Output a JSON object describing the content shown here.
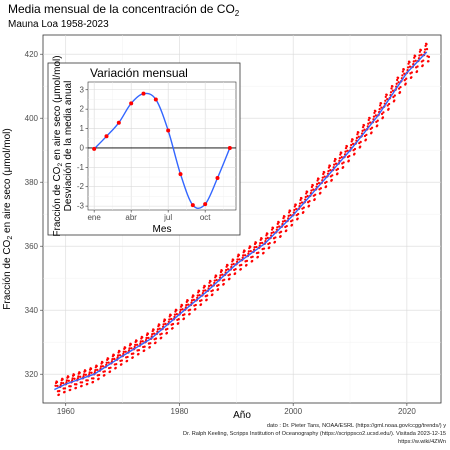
{
  "chart_data": [
    {
      "type": "line",
      "title": "Media mensual de la concentración de CO",
      "title_subscript": "2",
      "subtitle": "Mauna Loa 1958-2023",
      "xlabel": "Año",
      "ylabel_parts": [
        "Fracción de CO",
        "2",
        " en aire seco (μmol/mol)"
      ],
      "xlim": [
        1956,
        2026
      ],
      "ylim": [
        311,
        426
      ],
      "x_ticks": [
        1960,
        1980,
        2000,
        2020
      ],
      "x_tick_labels": [
        "1960",
        "1980",
        "2000",
        "2020"
      ],
      "y_ticks": [
        320,
        340,
        360,
        380,
        400,
        420
      ],
      "y_tick_labels": [
        "320",
        "340",
        "360",
        "380",
        "400",
        "420"
      ],
      "grid": true,
      "legend": "none",
      "trend": {
        "x": [
          1958,
          1960,
          1965,
          1970,
          1975,
          1980,
          1985,
          1990,
          1995,
          2000,
          2005,
          2010,
          2015,
          2020,
          2023.5
        ],
        "y": [
          315.2,
          316.9,
          320.0,
          325.7,
          331.1,
          338.7,
          346.1,
          354.4,
          360.8,
          369.7,
          379.8,
          389.9,
          401.0,
          414.2,
          420.7
        ]
      },
      "seasonal_amplitude": 3.2,
      "observations": "monthly values 1958-2023 (trend + seasonal cycle)",
      "colors": {
        "points": "#ff0000",
        "trend_line": "#3366ff"
      },
      "caption_lines": [
        "dato : Dr. Pieter Tans, NOAA/ESRL (https://gml.noaa.gov/ccgg/trends/) y",
        "Dr. Ralph Keeling, Scripps Institution of Oceanography (https://scrippsco2.ucsd.edu/). Visitada 2023-12-15",
        "https://w.wiki/4ZWn"
      ]
    },
    {
      "type": "line",
      "title": "Variación mensual",
      "xlabel": "Mes",
      "ylabel_parts": [
        "Fracción de CO",
        "2",
        " en aire seco (μmol/mol)"
      ],
      "ylabel2": "Desviación de la media anual",
      "x_tick_labels": [
        "ene",
        "abr",
        "jul",
        "oct"
      ],
      "x_tick_positions": [
        1,
        4,
        7,
        10
      ],
      "xlim": [
        0.5,
        12.5
      ],
      "ylim": [
        -3.2,
        3.4
      ],
      "y_ticks": [
        -3,
        -2,
        -1,
        0,
        1,
        2,
        3
      ],
      "y_tick_labels": [
        "-3",
        "-2",
        "-1",
        "0",
        "1",
        "2",
        "3"
      ],
      "months": [
        1,
        2,
        3,
        4,
        5,
        6,
        7,
        8,
        9,
        10,
        11,
        12
      ],
      "values": [
        -0.05,
        0.6,
        1.3,
        2.3,
        2.8,
        2.5,
        0.9,
        -1.35,
        -2.95,
        -2.9,
        -1.55,
        0.0
      ],
      "zero_line": true,
      "colors": {
        "points": "#ff0000",
        "line": "#3366ff"
      }
    }
  ]
}
